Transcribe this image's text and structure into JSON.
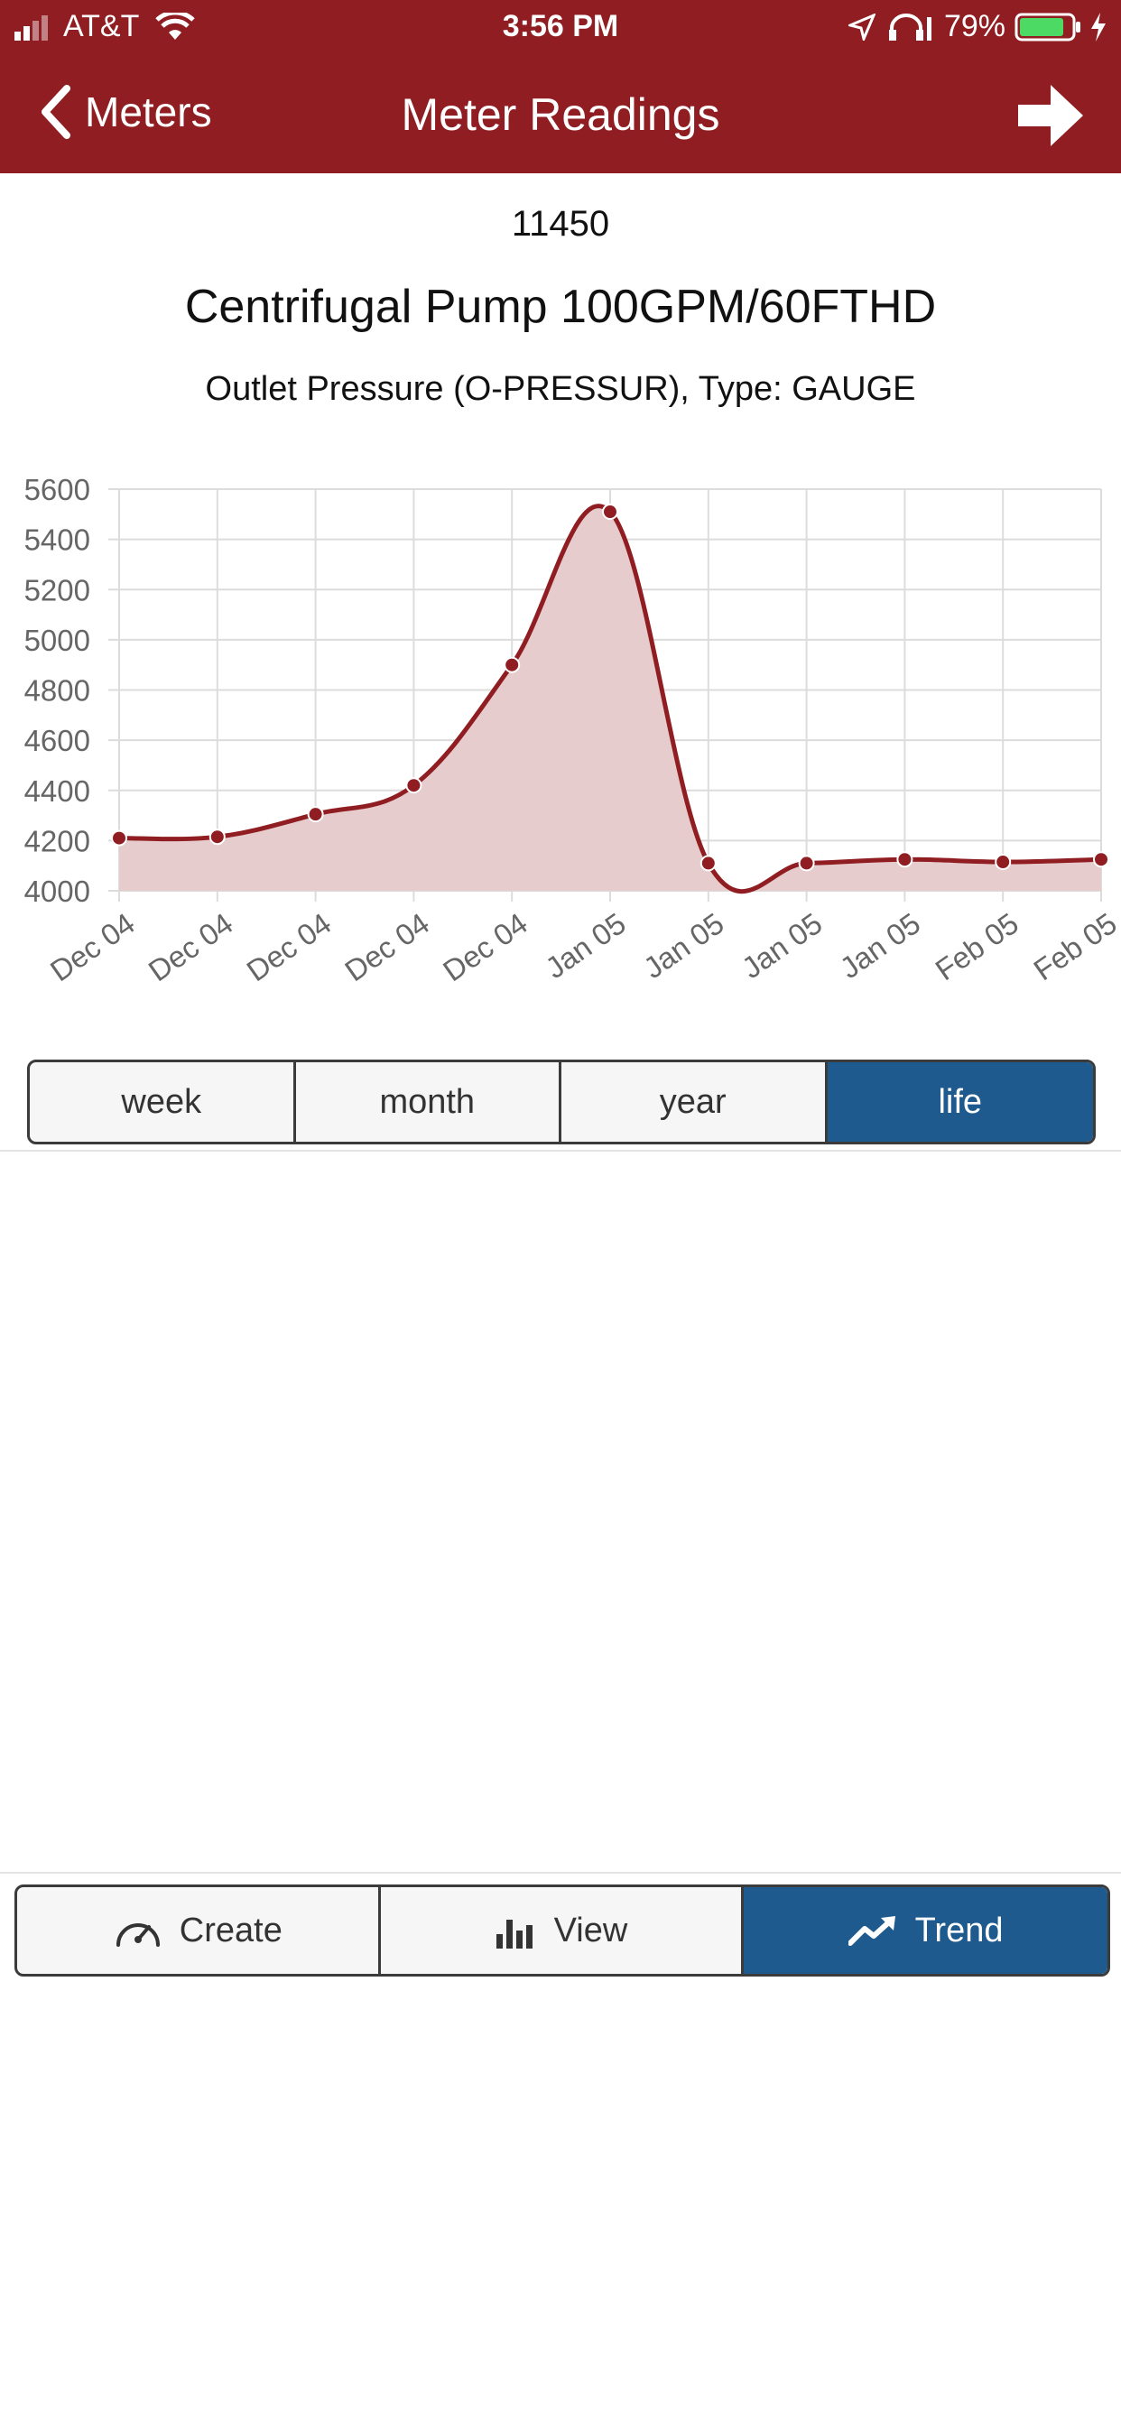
{
  "status_bar": {
    "carrier": "AT&T",
    "time": "3:56 PM",
    "battery": "79%"
  },
  "nav": {
    "back_label": "Meters",
    "title": "Meter Readings"
  },
  "meter": {
    "id": "11450",
    "asset": "Centrifugal Pump 100GPM/60FTHD",
    "description": "Outlet Pressure (O-PRESSUR), Type: GAUGE"
  },
  "chart_data": {
    "type": "area",
    "title": "",
    "xlabel": "",
    "ylabel": "",
    "x": [
      "Dec 04",
      "Dec 04",
      "Dec 04",
      "Dec 04",
      "Dec 04",
      "Jan 05",
      "Jan 05",
      "Jan 05",
      "Jan 05",
      "Feb 05",
      "Feb 05"
    ],
    "values": [
      4210,
      4215,
      4305,
      4420,
      4900,
      5510,
      4110,
      4110,
      4125,
      4115,
      4125
    ],
    "ylim": [
      4000,
      5600
    ],
    "yticks": [
      4000,
      4200,
      4400,
      4600,
      4800,
      5000,
      5200,
      5400,
      5600
    ],
    "grid": true,
    "line_color": "#8f1d21",
    "fill_color": "#e6cccd"
  },
  "period_tabs": [
    {
      "label": "week",
      "active": false
    },
    {
      "label": "month",
      "active": false
    },
    {
      "label": "year",
      "active": false
    },
    {
      "label": "life",
      "active": true
    }
  ],
  "bottom_tabs": [
    {
      "label": "Create",
      "icon": "gauge-icon",
      "active": false
    },
    {
      "label": "View",
      "icon": "bar-chart-icon",
      "active": false
    },
    {
      "label": "Trend",
      "icon": "trend-up-icon",
      "active": true
    }
  ],
  "colors": {
    "header": "#8f1d21",
    "accent": "#1f5a8e"
  }
}
